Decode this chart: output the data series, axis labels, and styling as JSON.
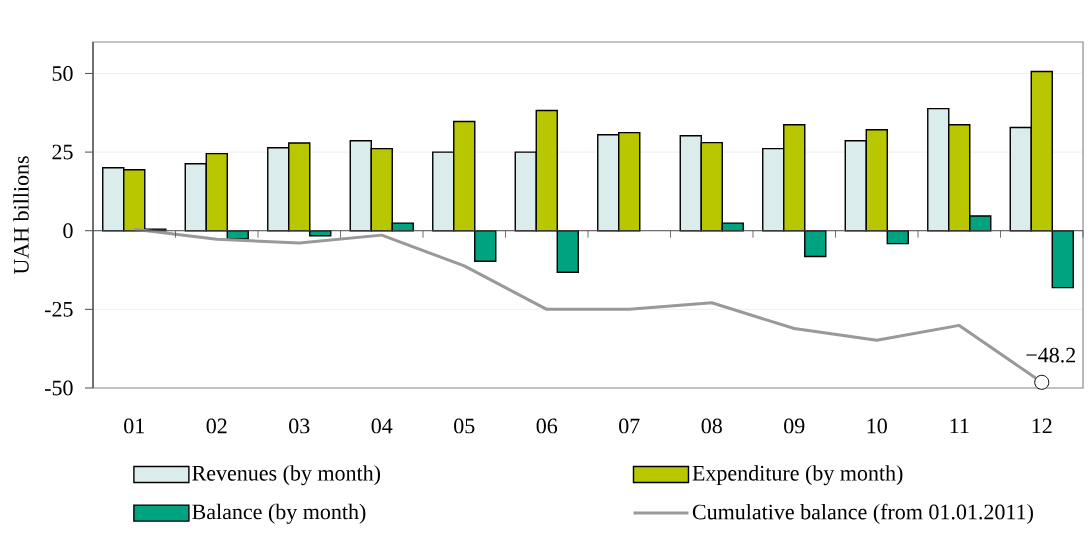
{
  "chart_data": {
    "type": "bar",
    "ylabel": "UAH billions",
    "categories": [
      "01",
      "02",
      "03",
      "04",
      "05",
      "06",
      "07",
      "08",
      "09",
      "10",
      "11",
      "12"
    ],
    "series": [
      {
        "name": "Revenues (by month)",
        "color": "#daeceb",
        "values": [
          20.0,
          21.3,
          26.4,
          28.6,
          25.0,
          25.0,
          30.5,
          30.2,
          26.1,
          28.6,
          38.8,
          32.8
        ]
      },
      {
        "name": "Expenditure (by month)",
        "color": "#b8c700",
        "values": [
          19.4,
          24.5,
          27.9,
          26.1,
          34.7,
          38.2,
          31.2,
          28.0,
          33.7,
          32.1,
          33.7,
          50.6
        ]
      },
      {
        "name": "Balance (by month)",
        "color": "#00a37f",
        "values": [
          0.5,
          -2.6,
          -1.6,
          2.4,
          -9.7,
          -13.2,
          null,
          2.4,
          -8.2,
          -4.1,
          4.7,
          -18.1
        ]
      },
      {
        "name": "Cumulative balance (from 01.01.2011)",
        "type": "line",
        "color": "#999999",
        "values": [
          0.5,
          -2.7,
          -3.9,
          -1.4,
          -11.2,
          -25.0,
          -25.0,
          -22.9,
          -31.1,
          -34.8,
          -30.1,
          -48.2
        ]
      }
    ],
    "ylim": [
      -50,
      60
    ],
    "yticks": [
      -50,
      -25,
      0,
      25,
      50
    ],
    "grid": "y",
    "legend": "bottom",
    "annotations": [
      {
        "text": "−48.2",
        "x": "12",
        "y": -48.2
      }
    ]
  }
}
